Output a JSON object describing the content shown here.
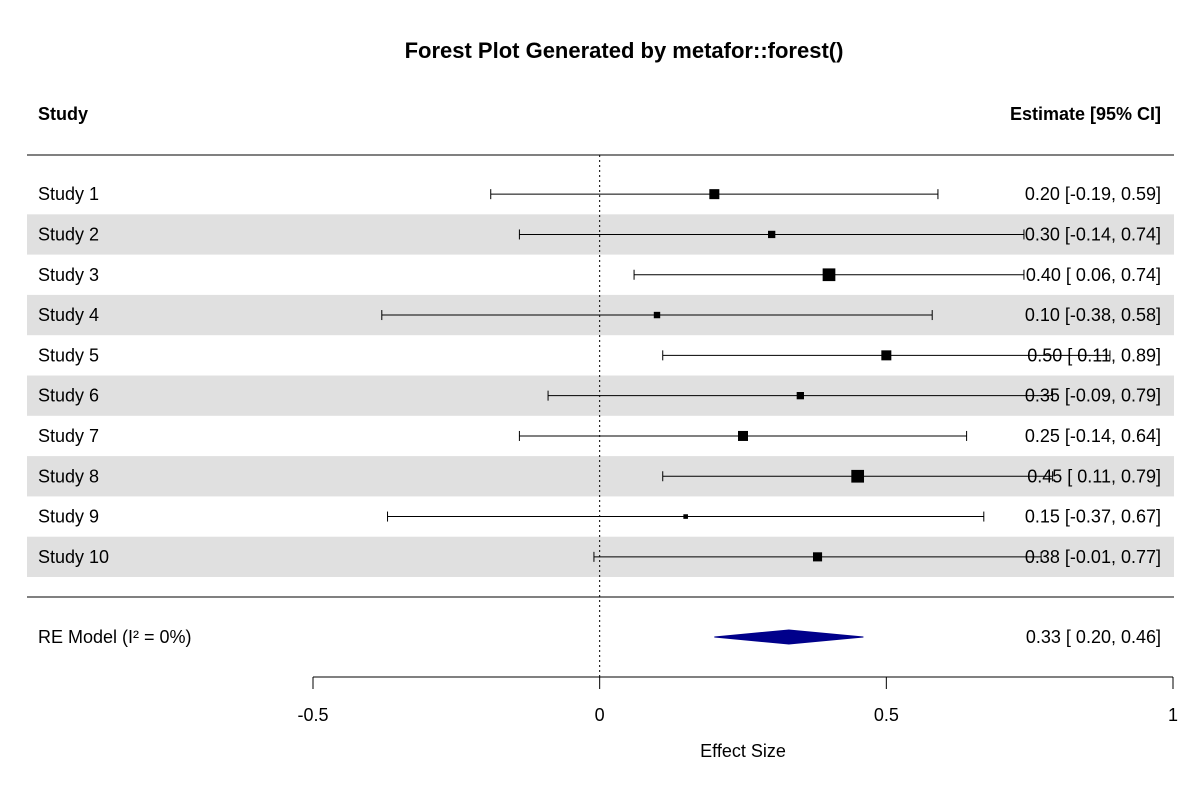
{
  "chart_data": {
    "type": "forest",
    "title": "Forest Plot Generated by metafor::forest()",
    "header_left": "Study",
    "header_right": "Estimate [95% CI]",
    "xlabel": "Effect Size",
    "xlim": [
      -0.5,
      1
    ],
    "xticks": [
      -0.5,
      0,
      0.5,
      1
    ],
    "xtick_labels": [
      "-0.5",
      "0",
      "0.5",
      "1"
    ],
    "reference_line": 0,
    "studies": [
      {
        "name": "Study 1",
        "estimate": 0.2,
        "lower": -0.19,
        "upper": 0.59,
        "label": "0.20 [-0.19, 0.59]",
        "weight": 1.0
      },
      {
        "name": "Study 2",
        "estimate": 0.3,
        "lower": -0.14,
        "upper": 0.74,
        "label": "0.30 [-0.14, 0.74]",
        "weight": 0.7
      },
      {
        "name": "Study 3",
        "estimate": 0.4,
        "lower": 0.06,
        "upper": 0.74,
        "label": "0.40 [ 0.06, 0.74]",
        "weight": 1.3
      },
      {
        "name": "Study 4",
        "estimate": 0.1,
        "lower": -0.38,
        "upper": 0.58,
        "label": "0.10 [-0.38, 0.58]",
        "weight": 0.6
      },
      {
        "name": "Study 5",
        "estimate": 0.5,
        "lower": 0.11,
        "upper": 0.89,
        "label": "0.50 [ 0.11, 0.89]",
        "weight": 1.0
      },
      {
        "name": "Study 6",
        "estimate": 0.35,
        "lower": -0.09,
        "upper": 0.79,
        "label": "0.35 [-0.09, 0.79]",
        "weight": 0.7
      },
      {
        "name": "Study 7",
        "estimate": 0.25,
        "lower": -0.14,
        "upper": 0.64,
        "label": "0.25 [-0.14, 0.64]",
        "weight": 1.0
      },
      {
        "name": "Study 8",
        "estimate": 0.45,
        "lower": 0.11,
        "upper": 0.79,
        "label": "0.45 [ 0.11, 0.79]",
        "weight": 1.3
      },
      {
        "name": "Study 9",
        "estimate": 0.15,
        "lower": -0.37,
        "upper": 0.67,
        "label": "0.15 [-0.37, 0.67]",
        "weight": 0.4
      },
      {
        "name": "Study 10",
        "estimate": 0.38,
        "lower": -0.01,
        "upper": 0.77,
        "label": "0.38 [-0.01, 0.77]",
        "weight": 0.9
      }
    ],
    "summary": {
      "name": "RE Model (I² = 0%)",
      "estimate": 0.33,
      "lower": 0.2,
      "upper": 0.46,
      "label": "0.33 [ 0.20, 0.46]"
    },
    "colors": {
      "row_shade": "#e0e0e0",
      "summary": "#00008b",
      "marks": "#000000"
    }
  }
}
